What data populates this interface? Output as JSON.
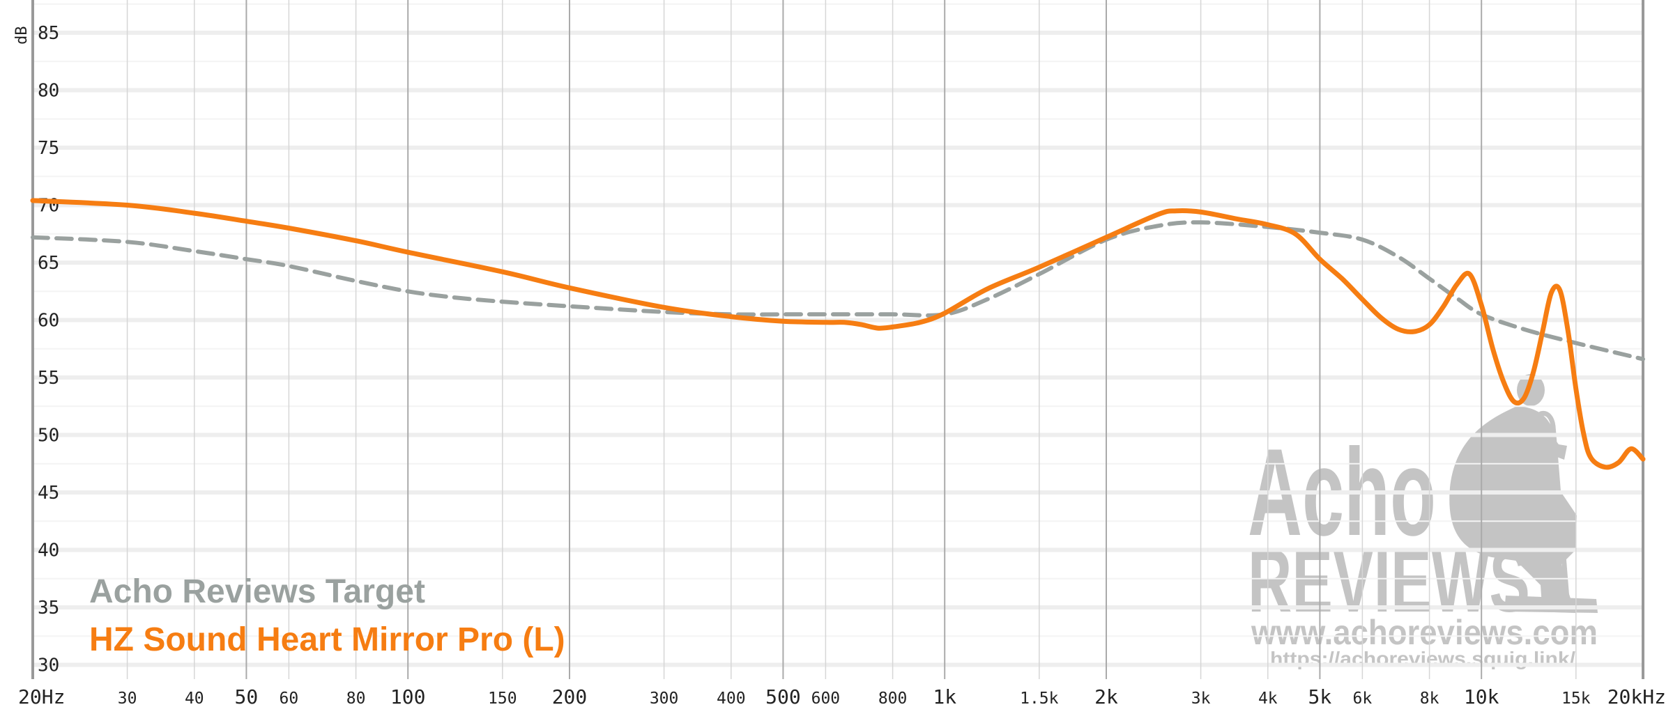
{
  "chart_data": {
    "type": "line",
    "x_scale": "log",
    "ylabel": "dB",
    "ylim": [
      28,
      87
    ],
    "xlim": [
      20,
      20000
    ],
    "grid": true,
    "legend_placement": "bottom-left",
    "y_ticks": [
      "85",
      "80",
      "75",
      "70",
      "65",
      "60",
      "55",
      "50",
      "45",
      "40",
      "35",
      "30"
    ],
    "x_ticks": [
      {
        "value": 20,
        "label": "20Hz",
        "major": true
      },
      {
        "value": 30,
        "label": "30",
        "major": false
      },
      {
        "value": 40,
        "label": "40",
        "major": false
      },
      {
        "value": 50,
        "label": "50",
        "major": true
      },
      {
        "value": 60,
        "label": "60",
        "major": false
      },
      {
        "value": 80,
        "label": "80",
        "major": false
      },
      {
        "value": 100,
        "label": "100",
        "major": true
      },
      {
        "value": 150,
        "label": "150",
        "major": false
      },
      {
        "value": 200,
        "label": "200",
        "major": true
      },
      {
        "value": 300,
        "label": "300",
        "major": false
      },
      {
        "value": 400,
        "label": "400",
        "major": false
      },
      {
        "value": 500,
        "label": "500",
        "major": true
      },
      {
        "value": 600,
        "label": "600",
        "major": false
      },
      {
        "value": 800,
        "label": "800",
        "major": false
      },
      {
        "value": 1000,
        "label": "1k",
        "major": true
      },
      {
        "value": 1500,
        "label": "1.5k",
        "major": false
      },
      {
        "value": 2000,
        "label": "2k",
        "major": true
      },
      {
        "value": 3000,
        "label": "3k",
        "major": false
      },
      {
        "value": 4000,
        "label": "4k",
        "major": false
      },
      {
        "value": 5000,
        "label": "5k",
        "major": true
      },
      {
        "value": 6000,
        "label": "6k",
        "major": false
      },
      {
        "value": 8000,
        "label": "8k",
        "major": false
      },
      {
        "value": 10000,
        "label": "10k",
        "major": true
      },
      {
        "value": 15000,
        "label": "15k",
        "major": false
      },
      {
        "value": 20000,
        "label": "20kHz",
        "major": true
      }
    ],
    "series": [
      {
        "name": "Acho Reviews Target",
        "color": "#9aa19f",
        "dashed": true,
        "x": [
          20,
          30,
          40,
          50,
          60,
          80,
          100,
          120,
          150,
          200,
          300,
          400,
          500,
          600,
          800,
          1000,
          1200,
          1500,
          2000,
          2500,
          3000,
          4000,
          5000,
          6000,
          7000,
          8000,
          9000,
          10000,
          12000,
          15000,
          20000
        ],
        "y": [
          67.2,
          66.8,
          66.0,
          65.3,
          64.7,
          63.4,
          62.5,
          62.0,
          61.6,
          61.2,
          60.7,
          60.5,
          60.5,
          60.5,
          60.5,
          60.5,
          61.8,
          64.0,
          67.0,
          68.2,
          68.5,
          68.1,
          67.6,
          67.0,
          65.5,
          63.6,
          61.9,
          60.5,
          59.2,
          58.0,
          56.6
        ]
      },
      {
        "name": "HZ Sound Heart Mirror Pro (L)",
        "color": "#f67d12",
        "dashed": false,
        "x": [
          20,
          30,
          40,
          50,
          60,
          80,
          100,
          150,
          200,
          300,
          400,
          500,
          600,
          650,
          700,
          750,
          800,
          900,
          1000,
          1200,
          1500,
          2000,
          2500,
          2700,
          3000,
          3500,
          4000,
          4500,
          5000,
          5500,
          6000,
          6500,
          7000,
          7500,
          8000,
          8500,
          9000,
          9500,
          10000,
          10500,
          11000,
          11500,
          12000,
          12500,
          13000,
          13500,
          14000,
          14500,
          15000,
          15500,
          16000,
          17000,
          18000,
          19000,
          20000
        ],
        "y": [
          70.4,
          70.0,
          69.3,
          68.6,
          68.0,
          66.9,
          65.9,
          64.2,
          62.8,
          61.1,
          60.3,
          59.9,
          59.8,
          59.8,
          59.6,
          59.3,
          59.4,
          59.8,
          60.6,
          62.7,
          64.6,
          67.2,
          69.2,
          69.5,
          69.4,
          68.8,
          68.3,
          67.5,
          65.3,
          63.6,
          61.8,
          60.2,
          59.2,
          59.0,
          59.6,
          61.2,
          63.1,
          64.0,
          61.3,
          57.5,
          54.6,
          52.9,
          53.2,
          55.5,
          59.0,
          62.4,
          62.6,
          59.0,
          54.0,
          50.1,
          48.0,
          47.2,
          47.6,
          48.8,
          47.9
        ]
      }
    ]
  },
  "watermark": {
    "logo_text_1": "Acho",
    "logo_text_2": "REVIEWS",
    "site": "www.achoreviews.com",
    "squig_url": "https://achoreviews.squig.link/"
  }
}
